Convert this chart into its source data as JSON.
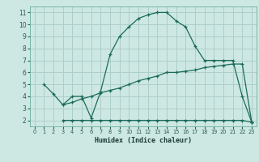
{
  "xlabel": "Humidex (Indice chaleur)",
  "bg_color": "#cde8e2",
  "grid_color": "#aececa",
  "line_color": "#1a6b5a",
  "xlim": [
    -0.5,
    23.5
  ],
  "ylim": [
    1.5,
    11.5
  ],
  "xticks": [
    0,
    1,
    2,
    3,
    4,
    5,
    6,
    7,
    8,
    9,
    10,
    11,
    12,
    13,
    14,
    15,
    16,
    17,
    18,
    19,
    20,
    21,
    22,
    23
  ],
  "yticks": [
    2,
    3,
    4,
    5,
    6,
    7,
    8,
    9,
    10,
    11
  ],
  "line1_x": [
    1,
    2,
    3,
    4,
    5,
    6,
    7,
    8,
    9,
    10,
    11,
    12,
    13,
    14,
    15,
    16,
    17,
    18,
    19,
    20,
    21,
    22,
    23
  ],
  "line1_y": [
    5.0,
    4.2,
    3.3,
    4.0,
    4.0,
    2.2,
    4.4,
    7.5,
    9.0,
    9.8,
    10.5,
    10.8,
    11.0,
    11.0,
    10.3,
    9.8,
    8.2,
    7.0,
    7.0,
    7.0,
    7.0,
    4.0,
    1.85
  ],
  "line2_x": [
    3,
    4,
    5,
    6,
    7,
    8,
    9,
    10,
    11,
    12,
    13,
    14,
    15,
    16,
    17,
    18,
    19,
    20,
    21,
    22,
    23
  ],
  "line2_y": [
    2.0,
    2.0,
    2.0,
    2.0,
    2.0,
    2.0,
    2.0,
    2.0,
    2.0,
    2.0,
    2.0,
    2.0,
    2.0,
    2.0,
    2.0,
    2.0,
    2.0,
    2.0,
    2.0,
    2.0,
    1.85
  ],
  "line3_x": [
    3,
    4,
    5,
    6,
    7,
    8,
    9,
    10,
    11,
    12,
    13,
    14,
    15,
    16,
    17,
    18,
    19,
    20,
    21,
    22,
    23
  ],
  "line3_y": [
    3.3,
    3.5,
    3.8,
    4.0,
    4.3,
    4.5,
    4.7,
    5.0,
    5.3,
    5.5,
    5.7,
    6.0,
    6.0,
    6.1,
    6.2,
    6.4,
    6.5,
    6.6,
    6.7,
    6.7,
    1.85
  ]
}
